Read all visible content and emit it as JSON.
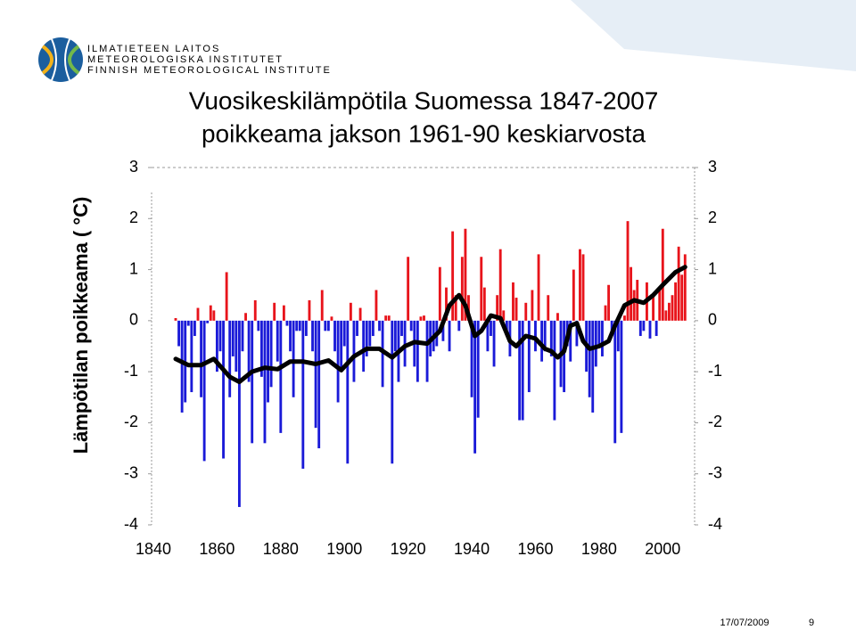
{
  "header": {
    "lines": [
      "ILMATIETEEN LAITOS",
      "METEOROLOGISKA INSTITUTET",
      "FINNISH METEOROLOGICAL INSTITUTE"
    ]
  },
  "footer": {
    "date": "17/07/2009",
    "page": "9"
  },
  "chart_data": {
    "type": "bar",
    "title": "Vuosikeskilämpötila Suomessa 1847-2007",
    "subtitle": "poikkeama jakson 1961-90 keskiarvosta",
    "ylabel": "Lämpötilan poikkeama ( °C)",
    "x": [
      1847,
      1848,
      1849,
      1850,
      1851,
      1852,
      1853,
      1854,
      1855,
      1856,
      1857,
      1858,
      1859,
      1860,
      1861,
      1862,
      1863,
      1864,
      1865,
      1866,
      1867,
      1868,
      1869,
      1870,
      1871,
      1872,
      1873,
      1874,
      1875,
      1876,
      1877,
      1878,
      1879,
      1880,
      1881,
      1882,
      1883,
      1884,
      1885,
      1886,
      1887,
      1888,
      1889,
      1890,
      1891,
      1892,
      1893,
      1894,
      1895,
      1896,
      1897,
      1898,
      1899,
      1900,
      1901,
      1902,
      1903,
      1904,
      1905,
      1906,
      1907,
      1908,
      1909,
      1910,
      1911,
      1912,
      1913,
      1914,
      1915,
      1916,
      1917,
      1918,
      1919,
      1920,
      1921,
      1922,
      1923,
      1924,
      1925,
      1926,
      1927,
      1928,
      1929,
      1930,
      1931,
      1932,
      1933,
      1934,
      1935,
      1936,
      1937,
      1938,
      1939,
      1940,
      1941,
      1942,
      1943,
      1944,
      1945,
      1946,
      1947,
      1948,
      1949,
      1950,
      1951,
      1952,
      1953,
      1954,
      1955,
      1956,
      1957,
      1958,
      1959,
      1960,
      1961,
      1962,
      1963,
      1964,
      1965,
      1966,
      1967,
      1968,
      1969,
      1970,
      1971,
      1972,
      1973,
      1974,
      1975,
      1976,
      1977,
      1978,
      1979,
      1980,
      1981,
      1982,
      1983,
      1984,
      1985,
      1986,
      1987,
      1988,
      1989,
      1990,
      1991,
      1992,
      1993,
      1994,
      1995,
      1996,
      1997,
      1998,
      1999,
      2000,
      2001,
      2002,
      2003,
      2004,
      2005,
      2006,
      2007
    ],
    "values": [
      0.05,
      -0.5,
      -1.8,
      -1.6,
      -0.1,
      -1.4,
      -0.3,
      0.25,
      -1.5,
      -2.75,
      -0.05,
      0.3,
      0.2,
      -1.0,
      -0.6,
      -2.7,
      0.95,
      -1.5,
      -0.7,
      -1.0,
      -3.65,
      -0.6,
      0.15,
      -1.2,
      -2.4,
      0.4,
      -0.2,
      -1.1,
      -2.4,
      -1.6,
      -1.3,
      0.35,
      -0.8,
      -2.2,
      0.3,
      -0.1,
      -0.6,
      -1.5,
      -0.2,
      -0.2,
      -2.9,
      -0.3,
      0.4,
      -0.6,
      -2.1,
      -2.5,
      0.6,
      -0.2,
      -0.2,
      0.08,
      -0.6,
      -1.6,
      -1.0,
      -0.5,
      -2.8,
      0.35,
      -1.2,
      -0.3,
      0.25,
      -1.0,
      -0.7,
      -0.5,
      -0.3,
      0.6,
      -0.2,
      -1.3,
      0.1,
      0.1,
      -2.8,
      -0.6,
      -1.2,
      -0.3,
      -0.9,
      1.25,
      -0.2,
      -0.9,
      -1.2,
      0.08,
      0.1,
      -1.2,
      -0.7,
      -0.6,
      -0.5,
      1.05,
      -0.4,
      0.65,
      -0.6,
      1.75,
      0.5,
      -0.2,
      1.25,
      1.8,
      0.5,
      -1.5,
      -2.6,
      -1.9,
      1.25,
      0.65,
      -0.6,
      -0.3,
      -0.9,
      0.5,
      1.4,
      0.2,
      -0.2,
      -0.7,
      0.75,
      0.45,
      -1.95,
      -1.95,
      0.35,
      -1.4,
      0.6,
      -0.6,
      1.3,
      -0.8,
      -0.6,
      0.5,
      -0.7,
      -1.95,
      0.15,
      -1.3,
      -1.4,
      -0.5,
      -0.8,
      1.0,
      -0.5,
      1.4,
      1.3,
      -1.0,
      -1.5,
      -1.8,
      -0.9,
      -0.5,
      -0.7,
      0.3,
      0.7,
      -0.3,
      -2.4,
      -0.6,
      -2.2,
      0.1,
      1.95,
      1.05,
      0.6,
      0.8,
      -0.3,
      -0.2,
      0.75,
      -0.35,
      0.5,
      -0.3,
      0.6,
      1.8,
      0.2,
      0.35,
      0.5,
      0.75,
      1.45,
      0.9,
      1.3
    ],
    "positive_color": "#e8141b",
    "negative_color": "#1a1ad8",
    "smooth": {
      "color": "#000000",
      "x": [
        1847,
        1851,
        1855,
        1859,
        1864,
        1867,
        1871,
        1875,
        1879,
        1883,
        1887,
        1891,
        1895,
        1899,
        1903,
        1907,
        1911,
        1915,
        1919,
        1922,
        1926,
        1930,
        1933,
        1936,
        1938,
        1941,
        1943,
        1946,
        1949,
        1952,
        1954,
        1957,
        1960,
        1963,
        1965,
        1967,
        1969,
        1971,
        1973,
        1975,
        1977,
        1980,
        1983,
        1985,
        1988,
        1991,
        1994,
        1997,
        2000,
        2004,
        2007
      ],
      "values": [
        -0.75,
        -0.87,
        -0.87,
        -0.75,
        -1.1,
        -1.2,
        -1.0,
        -0.92,
        -0.95,
        -0.8,
        -0.8,
        -0.85,
        -0.78,
        -0.97,
        -0.7,
        -0.55,
        -0.55,
        -0.72,
        -0.5,
        -0.42,
        -0.45,
        -0.2,
        0.3,
        0.5,
        0.3,
        -0.3,
        -0.2,
        0.1,
        0.05,
        -0.4,
        -0.5,
        -0.3,
        -0.35,
        -0.55,
        -0.6,
        -0.72,
        -0.6,
        -0.1,
        -0.05,
        -0.4,
        -0.55,
        -0.5,
        -0.4,
        -0.1,
        0.3,
        0.4,
        0.35,
        0.5,
        0.7,
        0.95,
        1.05
      ]
    },
    "xlim": [
      1840,
      2010
    ],
    "xticks": [
      1840,
      1860,
      1880,
      1900,
      1920,
      1940,
      1960,
      1980,
      2000
    ],
    "ylim": [
      -4,
      3
    ],
    "yticks": [
      -4,
      -3,
      -2,
      -1,
      0,
      1,
      2,
      3
    ],
    "y2lim": [
      -4,
      3
    ],
    "y2ticks": [
      -4,
      -3,
      -2,
      -1,
      0,
      1,
      2,
      3
    ]
  }
}
